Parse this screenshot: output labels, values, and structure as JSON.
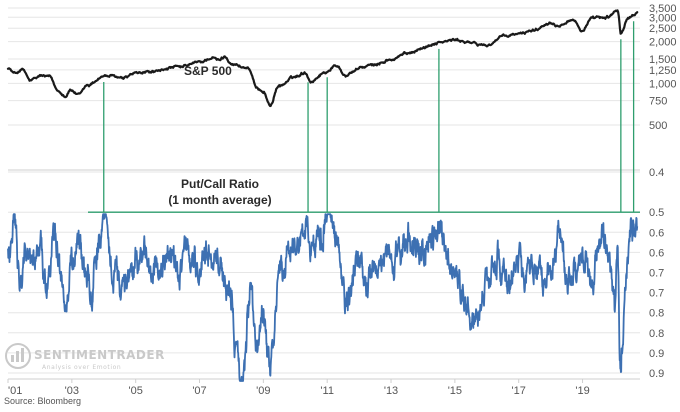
{
  "chart_data": {
    "type": "line",
    "sp500": {
      "title": "S&P 500",
      "y_scale": "log",
      "ylim": [
        330,
        3500
      ],
      "y_ticks": [
        "3,500",
        "3,000",
        "2,500",
        "2,000",
        "1,500",
        "1,250",
        "1,000",
        "750",
        "500"
      ],
      "y_tick_values": [
        3500,
        3000,
        2500,
        2000,
        1500,
        1250,
        1000,
        750,
        500
      ],
      "anchors": [
        [
          2001.0,
          1300
        ],
        [
          2001.2,
          1180
        ],
        [
          2001.45,
          1250
        ],
        [
          2001.7,
          1040
        ],
        [
          2001.85,
          1070
        ],
        [
          2002.0,
          1130
        ],
        [
          2002.3,
          1120
        ],
        [
          2002.55,
          900
        ],
        [
          2002.8,
          820
        ],
        [
          2002.95,
          900
        ],
        [
          2003.2,
          820
        ],
        [
          2003.5,
          980
        ],
        [
          2004.0,
          1130
        ],
        [
          2004.6,
          1100
        ],
        [
          2005.0,
          1200
        ],
        [
          2005.5,
          1210
        ],
        [
          2006.0,
          1280
        ],
        [
          2006.4,
          1300
        ],
        [
          2007.0,
          1420
        ],
        [
          2007.4,
          1520
        ],
        [
          2007.6,
          1460
        ],
        [
          2007.8,
          1540
        ],
        [
          2008.0,
          1380
        ],
        [
          2008.5,
          1290
        ],
        [
          2008.8,
          900
        ],
        [
          2009.0,
          880
        ],
        [
          2009.2,
          700
        ],
        [
          2009.5,
          950
        ],
        [
          2010.0,
          1120
        ],
        [
          2010.3,
          1210
        ],
        [
          2010.5,
          1040
        ],
        [
          2010.9,
          1200
        ],
        [
          2011.3,
          1350
        ],
        [
          2011.6,
          1150
        ],
        [
          2011.8,
          1230
        ],
        [
          2012.0,
          1300
        ],
        [
          2012.5,
          1360
        ],
        [
          2013.0,
          1480
        ],
        [
          2013.5,
          1650
        ],
        [
          2014.0,
          1820
        ],
        [
          2014.5,
          1960
        ],
        [
          2015.0,
          2050
        ],
        [
          2015.6,
          1930
        ],
        [
          2016.0,
          1880
        ],
        [
          2016.5,
          2160
        ],
        [
          2017.0,
          2270
        ],
        [
          2017.5,
          2450
        ],
        [
          2018.0,
          2790
        ],
        [
          2018.2,
          2600
        ],
        [
          2018.7,
          2900
        ],
        [
          2018.97,
          2400
        ],
        [
          2019.3,
          2880
        ],
        [
          2019.5,
          2950
        ],
        [
          2019.8,
          3020
        ],
        [
          2020.1,
          3380
        ],
        [
          2020.2,
          2300
        ],
        [
          2020.45,
          2950
        ],
        [
          2020.6,
          3100
        ],
        [
          2020.7,
          3230
        ]
      ]
    },
    "put_call": {
      "title": "Put/Call Ratio",
      "subtitle": "(1 month average)",
      "y_inverted": true,
      "ylim": [
        0.4,
        0.9
      ],
      "y_ticks": [
        "0.4",
        "0.5",
        "0.6",
        "0.6",
        "0.7",
        "0.7",
        "0.8",
        "0.8",
        "0.9",
        "0.9"
      ],
      "y_tick_values": [
        0.4,
        0.5,
        0.55,
        0.6,
        0.65,
        0.7,
        0.75,
        0.8,
        0.85,
        0.9
      ],
      "anchors": [
        [
          2001.0,
          0.62
        ],
        [
          2001.2,
          0.55
        ],
        [
          2001.4,
          0.68
        ],
        [
          2001.6,
          0.58
        ],
        [
          2001.8,
          0.62
        ],
        [
          2002.0,
          0.55
        ],
        [
          2002.2,
          0.66
        ],
        [
          2002.5,
          0.57
        ],
        [
          2002.8,
          0.72
        ],
        [
          2003.0,
          0.62
        ],
        [
          2003.2,
          0.55
        ],
        [
          2003.4,
          0.64
        ],
        [
          2003.6,
          0.72
        ],
        [
          2003.8,
          0.6
        ],
        [
          2004.0,
          0.53
        ],
        [
          2004.3,
          0.64
        ],
        [
          2004.6,
          0.7
        ],
        [
          2005.0,
          0.62
        ],
        [
          2005.3,
          0.58
        ],
        [
          2005.6,
          0.68
        ],
        [
          2006.0,
          0.6
        ],
        [
          2006.3,
          0.66
        ],
        [
          2006.6,
          0.58
        ],
        [
          2007.0,
          0.64
        ],
        [
          2007.4,
          0.6
        ],
        [
          2007.7,
          0.66
        ],
        [
          2008.0,
          0.7
        ],
        [
          2008.2,
          0.84
        ],
        [
          2008.35,
          0.91
        ],
        [
          2008.6,
          0.7
        ],
        [
          2008.8,
          0.84
        ],
        [
          2009.0,
          0.76
        ],
        [
          2009.2,
          0.88
        ],
        [
          2009.5,
          0.66
        ],
        [
          2009.8,
          0.6
        ],
        [
          2010.0,
          0.62
        ],
        [
          2010.3,
          0.52
        ],
        [
          2010.5,
          0.58
        ],
        [
          2010.8,
          0.56
        ],
        [
          2011.0,
          0.51
        ],
        [
          2011.3,
          0.58
        ],
        [
          2011.6,
          0.72
        ],
        [
          2011.8,
          0.66
        ],
        [
          2012.0,
          0.62
        ],
        [
          2012.3,
          0.68
        ],
        [
          2012.6,
          0.64
        ],
        [
          2013.0,
          0.6
        ],
        [
          2013.3,
          0.62
        ],
        [
          2013.6,
          0.57
        ],
        [
          2014.0,
          0.6
        ],
        [
          2014.3,
          0.55
        ],
        [
          2014.5,
          0.52
        ],
        [
          2014.8,
          0.62
        ],
        [
          2015.0,
          0.66
        ],
        [
          2015.3,
          0.72
        ],
        [
          2015.6,
          0.76
        ],
        [
          2016.0,
          0.7
        ],
        [
          2016.3,
          0.64
        ],
        [
          2016.6,
          0.68
        ],
        [
          2017.0,
          0.62
        ],
        [
          2017.3,
          0.66
        ],
        [
          2017.6,
          0.64
        ],
        [
          2018.0,
          0.66
        ],
        [
          2018.3,
          0.56
        ],
        [
          2018.6,
          0.66
        ],
        [
          2018.97,
          0.6
        ],
        [
          2019.3,
          0.66
        ],
        [
          2019.6,
          0.58
        ],
        [
          2019.8,
          0.62
        ],
        [
          2020.0,
          0.72
        ],
        [
          2020.1,
          0.56
        ],
        [
          2020.17,
          0.88
        ],
        [
          2020.25,
          0.78
        ],
        [
          2020.4,
          0.64
        ],
        [
          2020.55,
          0.55
        ],
        [
          2020.7,
          0.51
        ]
      ],
      "threshold": 0.5
    },
    "x_ticks": [
      "'01",
      "'03",
      "'05",
      "'07",
      "'09",
      "'11",
      "'13",
      "'15",
      "'17",
      "'19"
    ],
    "x_tick_values": [
      2001,
      2003,
      2005,
      2007,
      2009,
      2011,
      2013,
      2015,
      2017,
      2019
    ],
    "xlim": [
      2001.0,
      2020.8
    ],
    "signal_dates": [
      2004.0,
      2010.4,
      2011.0,
      2014.5,
      2020.2,
      2020.6
    ],
    "colors": {
      "sp500": "#1a1a1a",
      "put_call": "#3d70b2",
      "signal": "#2e9e6e",
      "grid": "#e6e6e6",
      "axis": "#cfcfcf"
    }
  },
  "source": "Source: Bloomberg",
  "watermark": {
    "name": "SENTIMENTRADER",
    "tagline": "Analysis over Emotion"
  }
}
